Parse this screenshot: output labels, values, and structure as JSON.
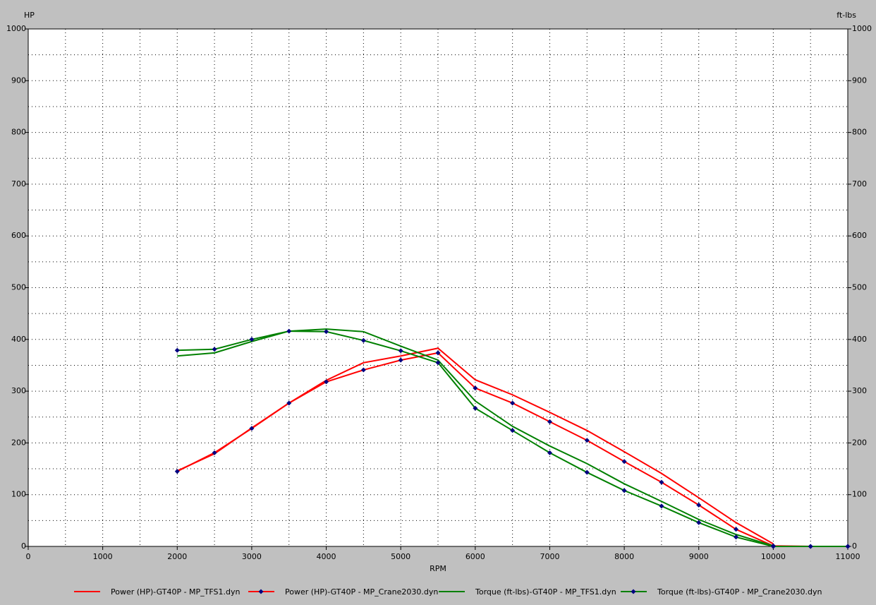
{
  "chart_data": {
    "type": "line",
    "x_label": "RPM",
    "y_label": "HP",
    "y2_label": "ft-lbs",
    "x": [
      2000,
      2500,
      3000,
      3500,
      4000,
      4500,
      5000,
      5500,
      6000,
      6500,
      7000,
      7500,
      8000,
      8500,
      9000,
      9500,
      10000,
      10500,
      11000
    ],
    "series": [
      {
        "name": "Power (HP)-GT40P - MP_TFS1.dyn",
        "color": "#ff0000",
        "marker": "none",
        "values": [
          146,
          179,
          229,
          277,
          321,
          355,
          368,
          383,
          322,
          293,
          259,
          224,
          183,
          141,
          94,
          46,
          5,
          null,
          null
        ]
      },
      {
        "name": "Power (HP)-GT40P - MP_Crane2030.dyn",
        "color": "#ff0000",
        "marker": "diamond",
        "values": [
          145,
          181,
          228,
          277,
          318,
          341,
          360,
          374,
          306,
          277,
          241,
          205,
          164,
          124,
          80,
          33,
          1,
          0,
          0
        ]
      },
      {
        "name": "Torque (ft-lbs)-GT40P - MP_TFS1.dyn",
        "color": "#008000",
        "marker": "none",
        "axis": "y2",
        "values": [
          368,
          374,
          396,
          416,
          420,
          415,
          387,
          360,
          281,
          232,
          194,
          160,
          121,
          87,
          52,
          23,
          1,
          null,
          null
        ]
      },
      {
        "name": "Torque (ft-lbs)-GT40P - MP_Crane2030.dyn",
        "color": "#008000",
        "marker": "diamond",
        "axis": "y2",
        "values": [
          379,
          381,
          400,
          416,
          415,
          398,
          378,
          355,
          267,
          224,
          181,
          143,
          108,
          78,
          46,
          18,
          0,
          0,
          0
        ]
      }
    ],
    "marker_color": "#000080",
    "xlim": [
      0,
      11000
    ],
    "xticks": [
      0,
      1000,
      2000,
      3000,
      4000,
      5000,
      6000,
      7000,
      8000,
      9000,
      10000,
      11000
    ],
    "xminorticks": [
      500,
      1500,
      2500,
      3500,
      4500,
      5500,
      6500,
      7500,
      8500,
      9500,
      10500
    ],
    "ylim": [
      0,
      1000
    ],
    "yticks": [
      0,
      100,
      200,
      300,
      400,
      500,
      600,
      700,
      800,
      900,
      1000
    ],
    "yminorticks": [
      50,
      150,
      250,
      350,
      450,
      550,
      650,
      750,
      850,
      950
    ],
    "y2lim": [
      0,
      1000
    ],
    "y2ticks": [
      0,
      100,
      200,
      300,
      400,
      500,
      600,
      700,
      800,
      900,
      1000
    ],
    "grid": true,
    "legend": "bottom"
  }
}
